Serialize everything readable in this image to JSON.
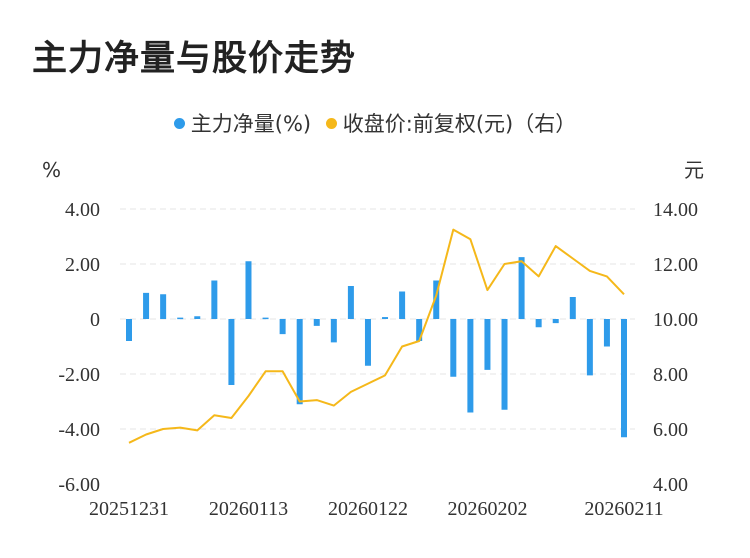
{
  "title": "主力净量与股价走势",
  "chart_data": {
    "type": "bar+line",
    "title": "主力净量与股价走势",
    "colors": {
      "bar": "#2E9BEA",
      "line": "#F5B81A",
      "grid": "#E5E5E5"
    },
    "legend": {
      "position": "top-center",
      "bar_label": "主力净量(%)",
      "line_label": "收盘价:前复权(元)（右）"
    },
    "left_axis": {
      "unit": "%",
      "range": [
        -6,
        4
      ],
      "ticks": [
        "4.00",
        "2.00",
        "0",
        "-2.00",
        "-4.00",
        "-6.00"
      ]
    },
    "right_axis": {
      "unit": "元",
      "range": [
        4,
        14
      ],
      "ticks": [
        "14.00",
        "12.00",
        "10.00",
        "8.00",
        "6.00",
        "4.00"
      ]
    },
    "x_tick_labels": [
      "20251231",
      "20260113",
      "20260122",
      "20260202",
      "20260211"
    ],
    "x_tick_index": [
      0,
      7,
      14,
      21,
      29
    ],
    "bar_values": [
      -0.8,
      0.95,
      0.9,
      0.05,
      0.1,
      1.4,
      -2.4,
      2.1,
      0.05,
      -0.55,
      -3.1,
      -0.25,
      -0.85,
      1.2,
      -1.7,
      0.07,
      1.0,
      -0.8,
      1.4,
      -2.1,
      -3.4,
      -1.85,
      -3.3,
      2.25,
      -0.3,
      -0.15,
      0.8,
      -2.05,
      -1.0,
      -4.3
    ],
    "line_values": [
      5.5,
      5.8,
      6.0,
      6.05,
      5.95,
      6.5,
      6.4,
      7.2,
      8.1,
      8.1,
      7.0,
      7.05,
      6.85,
      7.35,
      7.65,
      7.95,
      9.0,
      9.2,
      10.85,
      13.25,
      12.9,
      11.05,
      12.0,
      12.1,
      11.55,
      12.65,
      12.2,
      11.75,
      11.55,
      10.9
    ]
  }
}
